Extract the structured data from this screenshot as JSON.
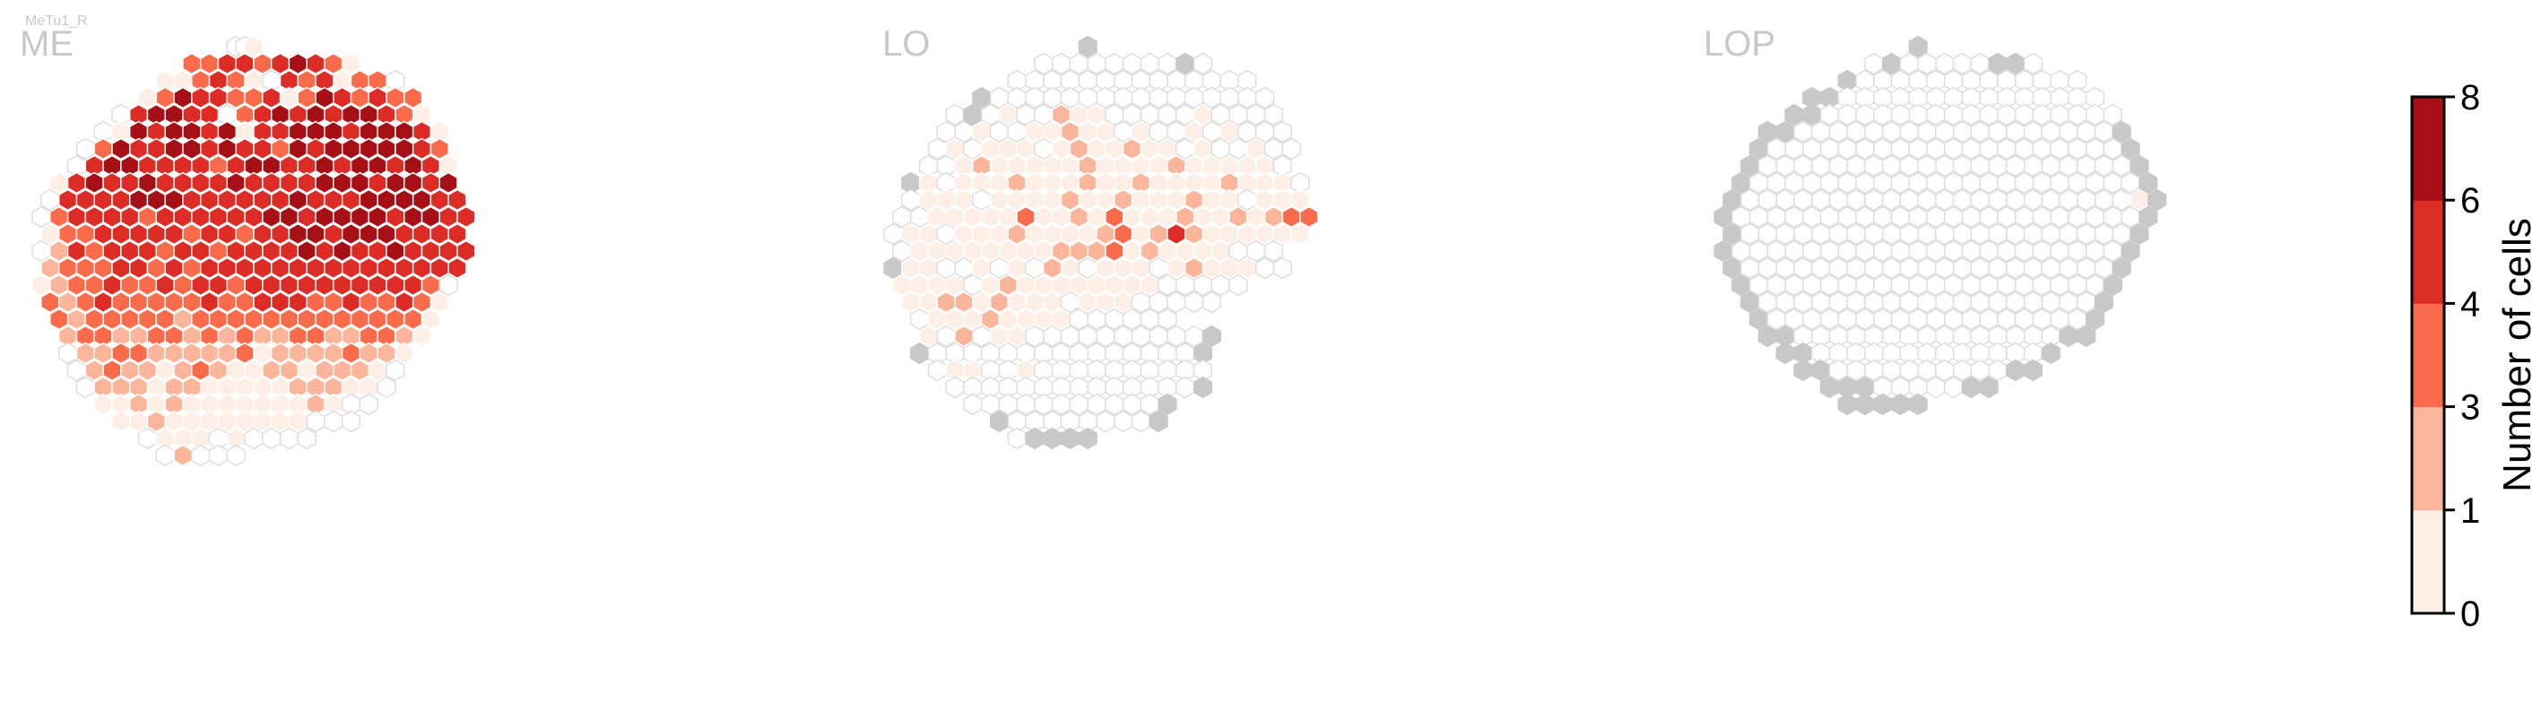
{
  "chart_data": {
    "type": "heatmap",
    "cell_type_label": "MeTu1_R",
    "panels": [
      {
        "name": "ME",
        "rows": [
          {
            "c": 11,
            "v": "                      001                     "
          },
          {
            "c": 11,
            "v": "                 3 3 4 4 3 4 5 4 3 1          "
          },
          {
            "c": 11,
            "v": "              1 1 3 4 3 1 0 4 3 4 1 3 3 0     "
          },
          {
            "c": 11,
            "v": "            1 3 5 4 4 3 3 4 1 3 5 4 3 4 3 3   "
          },
          {
            "c": 11,
            "v": "         0 4 5 5 4 4 0 3 4 5 4 5 4 5 5 4 3 1  "
          },
          {
            "c": 11,
            "v": "       0 1 5 4 5 5 4 5 1 4 4 5 5 5 4 5 5 5 4 1"
          },
          {
            "c": 11,
            "v": "     0 3 5 4 4 5 5 4 5 4 4 3 5 4 5 5 5 5 5 4 3"
          },
          {
            "c": 11,
            "v": "    0 4 5 5 4 4 4 4 3 4 5 5 4 4 5 4 5 5 4 5 4 1"
          },
          {
            "c": 11,
            "v": "  1 4 5 4 4 5 4 4 4 4 5 4 4 4 4 5 5 5 4 5 5 4 5"
          },
          {
            "c": 11,
            "v": " 0 4 4 4 4 5 5 5 4 4 4 4 4 4 5 4 4 4 5 5 5 5 4 4"
          },
          {
            "c": 11,
            "v": "0 3 4 4 4 4 3 4 4 4 4 4 4 5 5 4 5 5 5 5 4 5 5 4 4"
          },
          {
            "c": 11,
            "v": " 1 3 3 4 4 4 4 4 3 4 4 3 4 4 5 5 4 5 5 5 4 4 4 4"
          },
          {
            "c": 11,
            "v": "0 2 4 3 4 4 4 3 4 4 3 4 4 4 4 5 4 5 4 4 5 4 4 4 4"
          },
          {
            "c": 11,
            "v": " 2 3 3 3 4 4 3 4 3 4 4 4 4 4 4 4 4 4 4 4 4 4 4 4"
          },
          {
            "c": 11,
            "v": "1 2 3 3 4 3 3 4 3 4 4 3 4 4 4 4 4 4 4 4 4 4 3 0"
          },
          {
            "c": 11,
            "v": " 3 2 3 4 3 3 3 3 3 4 3 3 4 4 4 3 3 4 3 3 4 3 1"
          },
          {
            "c": 11,
            "v": "  3 2 3 3 3 3 3 2 3 3 3 3 3 3 3 3 3 3 3 3 3 1"
          },
          {
            "c": 11,
            "v": "   2 3 3 2 2 3 3 2 3 2 3 2 2 3 3 2 2 3 3 2 1"
          },
          {
            "c": 11,
            "v": "   0 2 2 3 3 2 2 2 2 2 3 1 2 2 2 2 3 2 2 1"
          },
          {
            "c": 11,
            "v": "    0 2 3 2 2 1 2 3 2 1 1 2 2 1 2 2 2 1 0"
          },
          {
            "c": 11,
            "v": "     0 2 2 2 1 2 2 1 1 1 1 1 2 2 2 1 1 0"
          },
          {
            "c": 11,
            "v": "       1 1 2 1 2 1 1 1 1 1 1 1 2 1 0 0"
          },
          {
            "c": 11,
            "v": "         1 1 2 1 1 1 1 1 1 1 1 0 0 0"
          },
          {
            "c": 11,
            "v": "            0 1 1 1 0 1 0 0 0 0"
          },
          {
            "c": 11,
            "v": "              0 2 0 0 0"
          }
        ]
      },
      {
        "name": "LO",
        "rows": [
          {
            "c": 11,
            "v": "                      g                       "
          },
          {
            "c": 11,
            "v": "                 0 0 0 0 0 0 0 0 g 0          "
          },
          {
            "c": 11,
            "v": "              0 0 0 0 0 0 0 0 0 0 0 0 0 0     "
          },
          {
            "c": 11,
            "v": "          g 0 0 0 0 0 0 0 0 0 0 0 0 0 0 0 0   "
          },
          {
            "c": 11,
            "v": "       0 g 0 1 0 0 2 1 1 0 0 0 0 0 1 0 0 0 0  "
          },
          {
            "c": 11,
            "v": "      0 0 1 0 0 1 1 2 1 1 0 1 0 0 1 0 1 0 0 0"
          },
          {
            "c": 11,
            "v": "     0 1 0 1 1 1 0 1 2 1 1 2 1 1 0 1 0 0 1 0 0"
          },
          {
            "c": 11,
            "v": "    0 0 1 2 1 1 1 1 1 2 1 1 1 1 2 1 1 1 1 1 0"
          },
          {
            "c": 11,
            "v": "  g 1 0 1 1 1 2 1 1 1 2 1 1 2 1 1 1 1 2 1 1 1 0"
          },
          {
            "c": 11,
            "v": "  0 1 1 1 0 1 1 1 1 2 1 1 2 1 1 1 2 1 1 0 1 1 1"
          },
          {
            "c": 11,
            "v": " 0 0 1 1 1 1 1 3 1 1 2 1 3 1 1 1 2 1 1 2 1 2 3 3"
          },
          {
            "c": 11,
            "v": "0 1 1 0 1 1 1 2 1 1 1 1 2 3 1 2 4 2 1 1 1 1 1 1"
          },
          {
            "c": 11,
            "v": " 0 1 1 1 1 1 1 1 1 2 2 2 3 1 2 1 1 1 1 0 0 0"
          },
          {
            "c": 11,
            "v": "g 1 1 0 0 1 0 1 0 2 1 0 1 1 1 0 1 2 1 1 1 0 0"
          },
          {
            "c": 11,
            "v": " 1 1 1 1 0 1 2 1 1 1 1 1 1 1 1 0 0 0 0 0"
          },
          {
            "c": 11,
            "v": "  1 1 2 2 1 2 1 1 1 0 1 1 1 0 0 0 0 0"
          },
          {
            "c": 11,
            "v": "   0 1 1 1 2 1 1 1 1 0 0 0 0 0 0"
          },
          {
            "c": 11,
            "v": "    1 0 2 0 1 1 0 0 0 0 0 0 0 0 0 0 g"
          },
          {
            "c": 11,
            "v": "   g 0 0 0 0 0 0 0 0 0 0 0 0 0 0 0 g"
          },
          {
            "c": 11,
            "v": "     0 1 1 0 0 1 0 0 0 0 0 0 0 0 0 0"
          },
          {
            "c": 11,
            "v": "       0 0 0 0 0 0 0 0 0 0 0 0 0 0 g"
          },
          {
            "c": 11,
            "v": "         0 0 0 0 0 0 0 0 0 0 0 g"
          },
          {
            "c": 11,
            "v": "            g 0 0 0 0 0 0 0 0 g"
          },
          {
            "c": 11,
            "v": "              0 g g g g"
          }
        ]
      },
      {
        "name": "LOP",
        "rows": [
          {
            "c": 11,
            "v": "                      g                       "
          },
          {
            "c": 11,
            "v": "                 0 g 0 0 0 0 0 g g 0          "
          },
          {
            "c": 11,
            "v": "              g 0 0 0 0 0 0 0 0 0 0 0 0 0     "
          },
          {
            "c": 11,
            "v": "          g g 0 0 0 0 0 0 0 0 0 0 0 0 0 0 0   "
          },
          {
            "c": 11,
            "v": "        g g 0 0 0 0 0 0 0 0 0 0 0 0 0 0 0 0 0"
          },
          {
            "c": 11,
            "v": "     g g 0 0 0 0 0 0 0 0 0 0 0 0 0 0 0 0 0 0 g"
          },
          {
            "c": 11,
            "v": "    g 0 0 0 0 0 0 0 0 0 0 0 0 0 0 0 0 0 0 0 0 g"
          },
          {
            "c": 11,
            "v": "   g 0 0 0 0 0 0 0 0 0 0 0 0 0 0 0 0 0 0 0 0 0 g"
          },
          {
            "c": 11,
            "v": "  g 0 0 0 0 0 0 0 0 0 0 0 0 0 0 0 0 0 0 0 0 0 0 g"
          },
          {
            "c": 11,
            "v": " g 0 0 0 0 0 0 0 0 0 0 0 0 0 0 0 0 0 0 0 0 0 0 1 g"
          },
          {
            "c": 11,
            "v": "g 0 0 0 0 0 0 0 0 0 0 0 0 0 0 0 0 0 0 0 0 0 0 0 g"
          },
          {
            "c": 11,
            "v": " g 0 0 0 0 0 0 0 0 0 0 0 0 0 0 0 0 0 0 0 0 0 0 g"
          },
          {
            "c": 11,
            "v": "g 0 0 0 0 0 0 0 0 0 0 0 0 0 0 0 0 0 0 0 0 0 0 g"
          },
          {
            "c": 11,
            "v": " g 0 0 0 0 0 0 0 0 0 0 0 0 0 0 0 0 0 0 0 0 0 g"
          },
          {
            "c": 11,
            "v": "  g 0 0 0 0 0 0 0 0 0 0 0 0 0 0 0 0 0 0 0 0 g"
          },
          {
            "c": 11,
            "v": "   g 0 0 0 0 0 0 0 0 0 0 0 0 0 0 0 0 0 0 0 g"
          },
          {
            "c": 11,
            "v": "    g 0 0 0 0 0 0 0 0 0 0 0 0 0 0 0 0 0 0 g"
          },
          {
            "c": 11,
            "v": "     g g 0 0 0 0 0 0 0 0 0 0 0 0 0 0 0 g g"
          },
          {
            "c": 11,
            "v": "       g g 0 0 0 0 0 0 0 0 0 0 0 0 0 g"
          },
          {
            "c": 11,
            "v": "         g g 0 0 0 0 0 0 0 0 0 0 g g"
          },
          {
            "c": 11,
            "v": "            g g g 0 0 0 0 0 g g"
          },
          {
            "c": 11,
            "v": "              g g g g g"
          }
        ]
      }
    ],
    "value_legend": {
      "0": "0",
      "1": "(0, 1]",
      "2": "(1, 3]",
      "3": "(3, 4]",
      "4": "(4, 6]",
      "5": "(6, 8]",
      "g": "out of range (grey)"
    },
    "colorbar": {
      "title": "Number of cells",
      "ticks": [
        "0",
        "1",
        "3",
        "4",
        "6",
        "8"
      ],
      "colors": [
        "#fdeee6",
        "#fbb59a",
        "#f96b4a",
        "#dd2b25",
        "#a50f15"
      ]
    },
    "colors": {
      "empty_fill": "#ffffff",
      "empty_stroke": "#dcdcdc",
      "grey_fill": "#c8c8c8",
      "bin1": "#fdeee6",
      "bin2": "#fbb59a",
      "bin3": "#f96b4a",
      "bin4": "#dd2b25",
      "bin5": "#a50f15"
    }
  }
}
